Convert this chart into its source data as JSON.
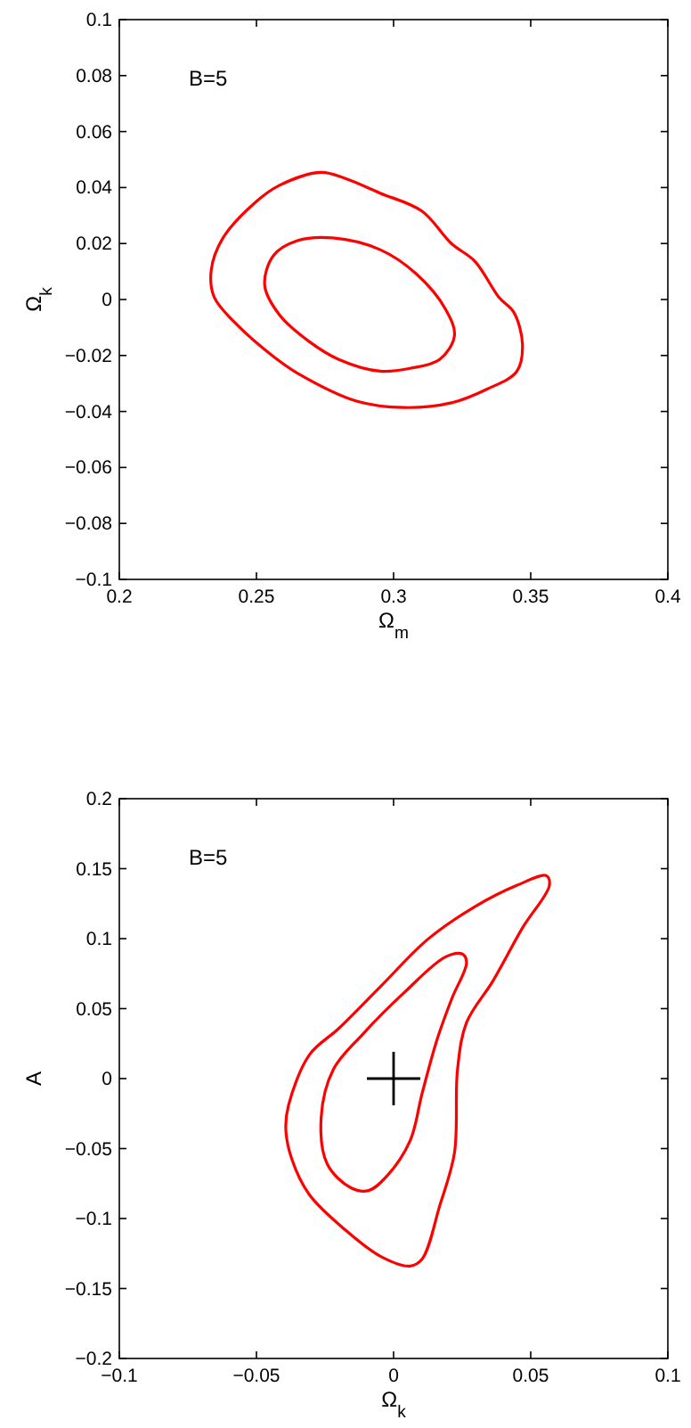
{
  "chart_data": [
    {
      "type": "line",
      "xlabel": "Ω$_{m}$",
      "ylabel": "Ω$_{k}$",
      "annotations": [
        "B=5"
      ],
      "xlim": [
        0.2,
        0.4
      ],
      "xticks": [
        0.2,
        0.25,
        0.3,
        0.35,
        0.4
      ],
      "ylim": [
        -0.1,
        0.1
      ],
      "yticks": [
        -0.1,
        -0.08,
        -0.06,
        -0.04,
        -0.02,
        0,
        0.02,
        0.04,
        0.06,
        0.08,
        0.1
      ],
      "grid": false
    },
    {
      "type": "line",
      "xlabel": "Ω$_{k}$",
      "ylabel": "A",
      "annotations": [
        "B=5"
      ],
      "xlim": [
        -0.1,
        0.1
      ],
      "xticks": [
        -0.1,
        -0.05,
        0,
        0.05,
        0.1
      ],
      "ylim": [
        -0.2,
        0.2
      ],
      "yticks": [
        -0.2,
        -0.15,
        -0.1,
        -0.05,
        0,
        0.05,
        0.1,
        0.15,
        0.2
      ],
      "grid": false,
      "series": [
        {
          "type": "scatter",
          "color": "#000000",
          "marker": "cross",
          "x": [
            0
          ],
          "values": [
            0
          ]
        }
      ]
    }
  ]
}
